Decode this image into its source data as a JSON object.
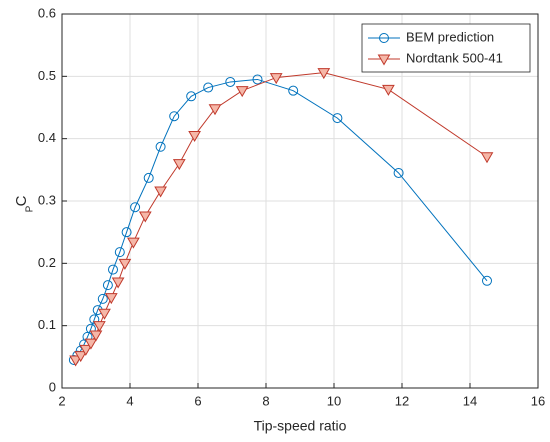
{
  "chart_data": {
    "type": "line",
    "xlabel": "Tip-speed ratio",
    "ylabel": {
      "main": "C",
      "sub": "P"
    },
    "xlim": [
      2,
      16
    ],
    "xticks": [
      2,
      4,
      6,
      8,
      10,
      12,
      14,
      16
    ],
    "ylim": [
      0,
      0.6
    ],
    "yticks": [
      0,
      0.1,
      0.2,
      0.3,
      0.4,
      0.5,
      0.6
    ],
    "grid": true,
    "legend": "upper right",
    "series": [
      {
        "name": "BEM prediction",
        "color": "#0072bd",
        "marker": "circle",
        "marker_fill": "none",
        "x": [
          2.35,
          2.45,
          2.55,
          2.65,
          2.75,
          2.85,
          2.95,
          3.05,
          3.2,
          3.35,
          3.5,
          3.7,
          3.9,
          4.15,
          4.55,
          4.9,
          5.3,
          5.8,
          6.3,
          6.95,
          7.75,
          8.8,
          10.1,
          11.9,
          14.5
        ],
        "values": [
          0.045,
          0.052,
          0.06,
          0.07,
          0.082,
          0.095,
          0.11,
          0.125,
          0.143,
          0.165,
          0.19,
          0.218,
          0.25,
          0.29,
          0.337,
          0.387,
          0.436,
          0.468,
          0.482,
          0.491,
          0.495,
          0.477,
          0.433,
          0.345,
          0.172
        ]
      },
      {
        "name": "Nordtank 500-41",
        "color": "#c0392b",
        "marker": "triangle-down",
        "marker_fill": "#f5b7a8",
        "x": [
          2.4,
          2.55,
          2.7,
          2.85,
          3.0,
          3.1,
          3.25,
          3.45,
          3.65,
          3.85,
          4.1,
          4.45,
          4.9,
          5.45,
          5.9,
          6.5,
          7.3,
          8.3,
          9.7,
          11.6,
          14.5
        ],
        "values": [
          0.045,
          0.052,
          0.062,
          0.072,
          0.085,
          0.1,
          0.12,
          0.145,
          0.17,
          0.2,
          0.234,
          0.276,
          0.316,
          0.36,
          0.405,
          0.448,
          0.477,
          0.498,
          0.506,
          0.479,
          0.371
        ]
      }
    ]
  }
}
